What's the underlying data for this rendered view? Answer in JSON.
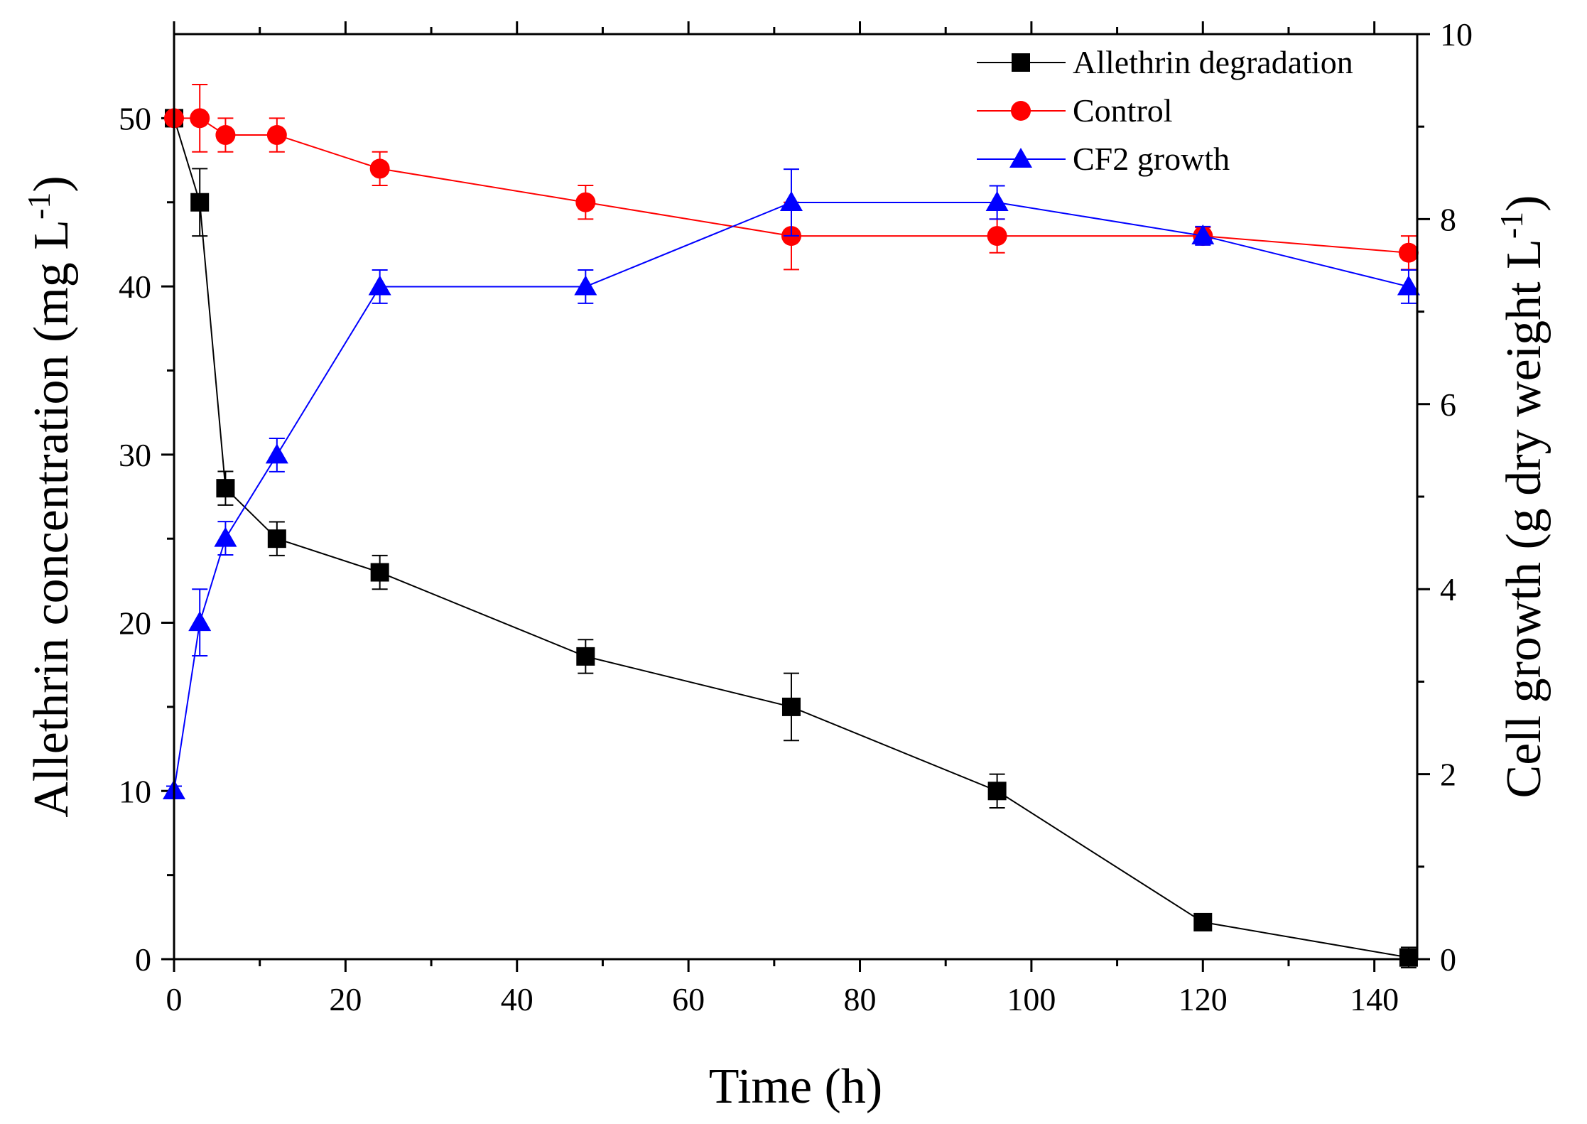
{
  "chart_data": {
    "type": "line",
    "title": "",
    "xlabel": "Time (h)",
    "ylabel_left": {
      "text": "Allethrin concentration (mg L",
      "sup": "-1",
      "close": ")"
    },
    "ylabel_right": {
      "text": "Cell growth (g dry weight L",
      "sup": "-1",
      "close": ")"
    },
    "xlim": [
      0,
      145
    ],
    "ylim_left": [
      0,
      55
    ],
    "ylim_right": [
      0,
      10
    ],
    "x_ticks": [
      0,
      20,
      40,
      60,
      80,
      100,
      120,
      140
    ],
    "y_left_ticks": [
      0,
      10,
      20,
      30,
      40,
      50
    ],
    "y_right_ticks": [
      0,
      2,
      4,
      6,
      8,
      10
    ],
    "legend_position": "top-right",
    "grid": false,
    "series": [
      {
        "name": "Allethrin degradation",
        "axis": "left",
        "color": "#000000",
        "marker": "square",
        "x": [
          0,
          3,
          6,
          12,
          24,
          48,
          72,
          96,
          120,
          144
        ],
        "y": [
          50,
          45,
          28,
          25,
          23,
          18,
          15,
          10,
          2.2,
          0.1
        ],
        "err": [
          0.5,
          2,
          1,
          1,
          1,
          1,
          2,
          1,
          0.3,
          0.6
        ]
      },
      {
        "name": "Control",
        "axis": "left",
        "color": "#ff0000",
        "marker": "circle",
        "x": [
          0,
          3,
          6,
          12,
          24,
          48,
          72,
          96,
          120,
          144
        ],
        "y": [
          50,
          50,
          49,
          49,
          47,
          45,
          43,
          43,
          43,
          42
        ],
        "err": [
          0.3,
          2,
          1,
          1,
          1,
          1,
          2,
          1,
          0.5,
          1
        ]
      },
      {
        "name": "CF2 growth",
        "axis": "right",
        "color": "#0000ff",
        "marker": "triangle",
        "x": [
          0,
          3,
          6,
          12,
          24,
          48,
          72,
          96,
          120,
          144
        ],
        "y": [
          1.82,
          3.64,
          4.55,
          5.45,
          7.27,
          7.27,
          8.18,
          8.18,
          7.82,
          7.27
        ],
        "err": [
          0.05,
          0.36,
          0.18,
          0.18,
          0.18,
          0.18,
          0.36,
          0.18,
          0.1,
          0.18
        ]
      }
    ]
  }
}
